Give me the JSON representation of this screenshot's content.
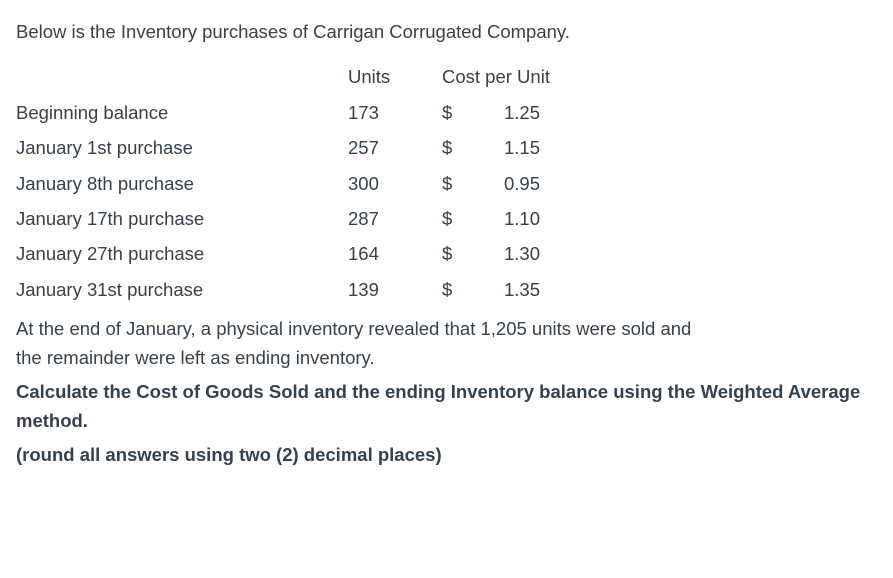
{
  "intro": "Below is the Inventory purchases of Carrigan Corrugated Company.",
  "columns": {
    "units": "Units",
    "cost": "Cost per Unit"
  },
  "table": {
    "rows": [
      {
        "label": "Beginning balance",
        "units": "173",
        "sym": "$",
        "cost": "1.25"
      },
      {
        "label": "January 1st purchase",
        "units": "257",
        "sym": "$",
        "cost": "1.15"
      },
      {
        "label": "January 8th purchase",
        "units": "300",
        "sym": "$",
        "cost": "0.95"
      },
      {
        "label": "January 17th purchase",
        "units": "287",
        "sym": "$",
        "cost": "1.10"
      },
      {
        "label": "January 27th purchase",
        "units": "164",
        "sym": "$",
        "cost": "1.30"
      },
      {
        "label": "January 31st purchase",
        "units": "139",
        "sym": "$",
        "cost": "1.35"
      }
    ]
  },
  "para1a": "At the end of January, a physical inventory revealed that 1,205 units were sold and",
  "para1b": "the remainder were left as ending inventory.",
  "para2a": "Calculate the Cost of Goods Sold and the ending Inventory balance using the Weighted Average",
  "para2b": "method.",
  "para3": "(round all answers using two (2) decimal places)"
}
